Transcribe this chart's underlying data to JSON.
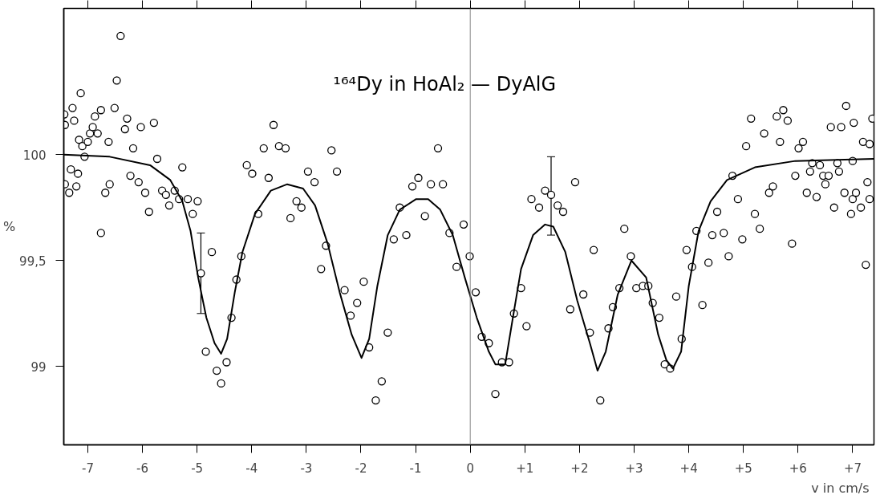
{
  "chart_data": {
    "type": "scatter",
    "title": "¹⁶⁴Dy in HoAl₂ — DyAlG",
    "xlabel": "v in cm/s",
    "ylabel": "%",
    "xlim": [
      -7.44,
      7.39
    ],
    "ylim": [
      98.63,
      100.69
    ],
    "xticks": [
      {
        "value": -7,
        "label": "-7"
      },
      {
        "value": -6,
        "label": "-6"
      },
      {
        "value": -5,
        "label": "-5"
      },
      {
        "value": -4,
        "label": "-4"
      },
      {
        "value": -3,
        "label": "-3"
      },
      {
        "value": -2,
        "label": "-2"
      },
      {
        "value": -1,
        "label": "-1"
      },
      0,
      {
        "value": 1,
        "label": "+1"
      },
      {
        "value": 2,
        "label": "+2"
      },
      {
        "value": 3,
        "label": "+3"
      },
      {
        "value": 4,
        "label": "+4"
      },
      {
        "value": 5,
        "label": "+5"
      },
      {
        "value": 6,
        "label": "+6"
      },
      {
        "value": 7,
        "label": "+7"
      }
    ],
    "yticks": [
      99,
      {
        "value": 99.5,
        "label": "99,5"
      },
      100
    ],
    "grid": false,
    "marker": "circle",
    "ref_lines": [
      {
        "axis": "x",
        "value": 0,
        "color": "#888888"
      }
    ],
    "series": [
      {
        "color": "#000000",
        "x": [
          -7.43,
          -7.42,
          -7.42,
          -7.34,
          -7.31,
          -7.28,
          -7.25,
          -7.21,
          -7.18,
          -7.16,
          -7.13,
          -7.1,
          -7.06,
          -7.0,
          -6.96,
          -6.91,
          -6.87,
          -6.82,
          -6.76,
          -6.76,
          -6.68,
          -6.62,
          -6.6,
          -6.51,
          -6.47,
          -6.4,
          -6.32,
          -6.28,
          -6.22,
          -6.17,
          -6.07,
          -6.03,
          -5.95,
          -5.88,
          -5.79,
          -5.73,
          -5.64,
          -5.57,
          -5.51,
          -5.41,
          -5.33,
          -5.27,
          -5.17,
          -5.08,
          -4.99,
          -4.84,
          -4.73,
          -4.64,
          -4.56,
          -4.46,
          -4.37,
          -4.28,
          -4.19,
          -4.09,
          -3.99,
          -3.88,
          -3.78,
          -3.69,
          -3.6,
          -3.5,
          -3.38,
          -3.29,
          -3.18,
          -3.09,
          -2.97,
          -2.85,
          -2.73,
          -2.64,
          -2.54,
          -2.44,
          -2.3,
          -2.19,
          -2.07,
          -1.95,
          -1.85,
          -1.73,
          -1.62,
          -1.51,
          -1.4,
          -1.29,
          -1.17,
          -1.06,
          -0.95,
          -0.83,
          -0.72,
          -0.59,
          -0.5,
          -0.38,
          -0.25,
          -0.12,
          -0.01,
          0.1,
          0.21,
          0.34,
          0.46,
          0.58,
          0.71,
          0.8,
          0.93,
          1.03,
          1.12,
          1.26,
          1.37,
          1.6,
          1.7,
          1.83,
          1.92,
          2.07,
          2.19,
          2.26,
          2.38,
          2.53,
          2.61,
          2.73,
          2.82,
          2.94,
          3.04,
          3.16,
          3.26,
          3.34,
          3.46,
          3.56,
          3.66,
          3.77,
          3.87,
          3.96,
          4.06,
          4.14,
          4.25,
          4.36,
          4.43,
          4.52,
          4.64,
          4.73,
          4.8,
          4.9,
          4.98,
          5.05,
          5.14,
          5.21,
          5.3,
          5.38,
          5.47,
          5.54,
          5.61,
          5.67,
          5.73,
          5.81,
          5.89,
          5.95,
          6.01,
          6.09,
          6.16,
          6.22,
          6.26,
          6.34,
          6.4,
          6.46,
          6.5,
          6.56,
          6.6,
          6.66,
          6.72,
          6.75,
          6.79,
          6.85,
          6.88,
          6.97,
          7.0,
          7.0,
          7.02,
          7.06,
          7.15,
          7.19,
          7.24,
          7.27,
          7.31,
          7.31,
          7.36
        ],
        "values": [
          100.19,
          100.14,
          99.86,
          99.82,
          99.93,
          100.22,
          100.16,
          99.85,
          99.91,
          100.07,
          100.29,
          100.04,
          99.99,
          100.06,
          100.1,
          100.13,
          100.18,
          100.1,
          100.21,
          99.63,
          99.82,
          100.06,
          99.86,
          100.22,
          100.35,
          100.56,
          100.12,
          100.17,
          99.9,
          100.03,
          99.87,
          100.13,
          99.82,
          99.73,
          100.15,
          99.98,
          99.83,
          99.81,
          99.76,
          99.83,
          99.79,
          99.94,
          99.79,
          99.72,
          99.78,
          99.07,
          99.54,
          98.98,
          98.92,
          99.02,
          99.23,
          99.41,
          99.52,
          99.95,
          99.91,
          99.72,
          100.03,
          99.89,
          100.14,
          100.04,
          100.03,
          99.7,
          99.78,
          99.75,
          99.92,
          99.87,
          99.46,
          99.57,
          100.02,
          99.92,
          99.36,
          99.24,
          99.3,
          99.4,
          99.09,
          98.84,
          98.93,
          99.16,
          99.6,
          99.75,
          99.62,
          99.85,
          99.89,
          99.71,
          99.86,
          100.03,
          99.86,
          99.63,
          99.47,
          99.67,
          99.52,
          99.35,
          99.14,
          99.11,
          98.87,
          99.02,
          99.02,
          99.25,
          99.37,
          99.19,
          99.79,
          99.75,
          99.83,
          99.76,
          99.73,
          99.27,
          99.87,
          99.34,
          99.16,
          99.55,
          98.84,
          99.18,
          99.28,
          99.37,
          99.65,
          99.52,
          99.37,
          99.38,
          99.38,
          99.3,
          99.23,
          99.01,
          98.99,
          99.33,
          99.13,
          99.55,
          99.47,
          99.64,
          99.29,
          99.49,
          99.62,
          99.73,
          99.63,
          99.52,
          99.9,
          99.79,
          99.6,
          100.04,
          100.17,
          99.72,
          99.65,
          100.1,
          99.82,
          99.85,
          100.18,
          100.06,
          100.21,
          100.16,
          99.58,
          99.9,
          100.03,
          100.06,
          99.82,
          99.92,
          99.96,
          99.8,
          99.95,
          99.9,
          99.86,
          99.9,
          100.13,
          99.75,
          99.96,
          99.92,
          100.13,
          99.82,
          100.23,
          99.72,
          99.79,
          99.97,
          100.15,
          99.82,
          99.75,
          100.06,
          99.48,
          99.87,
          99.79,
          100.05,
          100.17
        ]
      },
      {
        "color": "#000000",
        "x": [
          -4.93,
          1.48
        ],
        "values": [
          99.44,
          99.81
        ],
        "errors": [
          [
            99.25,
            99.63
          ],
          [
            99.62,
            99.99
          ]
        ]
      },
      {
        "type": "line",
        "color": "#000000",
        "line_style": "solid",
        "marker": "none",
        "x": [
          -7.44,
          -6.6,
          -5.86,
          -5.49,
          -5.27,
          -5.12,
          -4.98,
          -4.83,
          -4.68,
          -4.56,
          -4.45,
          -4.31,
          -4.17,
          -3.94,
          -3.65,
          -3.35,
          -3.06,
          -2.84,
          -2.61,
          -2.39,
          -2.17,
          -1.99,
          -1.85,
          -1.7,
          -1.51,
          -1.29,
          -0.99,
          -0.77,
          -0.55,
          -0.32,
          -0.1,
          0.12,
          0.34,
          0.46,
          0.64,
          0.78,
          0.93,
          1.15,
          1.37,
          1.52,
          1.74,
          1.96,
          2.19,
          2.33,
          2.48,
          2.7,
          2.95,
          3.22,
          3.44,
          3.59,
          3.71,
          3.86,
          4.0,
          4.18,
          4.4,
          4.7,
          5.21,
          5.95,
          7.39
        ],
        "values": [
          100.0,
          99.99,
          99.95,
          99.88,
          99.78,
          99.64,
          99.42,
          99.23,
          99.11,
          99.06,
          99.13,
          99.35,
          99.54,
          99.72,
          99.83,
          99.86,
          99.84,
          99.76,
          99.58,
          99.35,
          99.15,
          99.04,
          99.13,
          99.38,
          99.62,
          99.74,
          99.79,
          99.79,
          99.74,
          99.62,
          99.42,
          99.23,
          99.07,
          99.01,
          99.01,
          99.23,
          99.46,
          99.62,
          99.67,
          99.66,
          99.54,
          99.31,
          99.11,
          98.98,
          99.07,
          99.34,
          99.5,
          99.42,
          99.15,
          99.03,
          98.99,
          99.07,
          99.38,
          99.64,
          99.78,
          99.88,
          99.94,
          99.97,
          99.98
        ]
      }
    ]
  }
}
